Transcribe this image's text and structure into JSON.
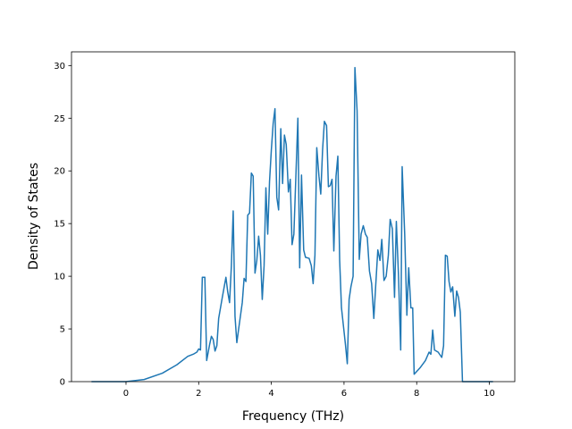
{
  "chart_data": {
    "type": "line",
    "x_label": "Frequency (THz)",
    "y_label": "Density of States",
    "x": [
      -0.95,
      0,
      0.5,
      1.0,
      1.4,
      1.7,
      1.85,
      1.95,
      2.0,
      2.05,
      2.1,
      2.17,
      2.22,
      2.3,
      2.35,
      2.4,
      2.45,
      2.5,
      2.55,
      2.65,
      2.75,
      2.8,
      2.85,
      2.9,
      2.95,
      3.0,
      3.05,
      3.1,
      3.2,
      3.25,
      3.3,
      3.35,
      3.4,
      3.45,
      3.5,
      3.55,
      3.6,
      3.65,
      3.7,
      3.75,
      3.8,
      3.85,
      3.9,
      3.95,
      4.0,
      4.05,
      4.1,
      4.15,
      4.2,
      4.26,
      4.31,
      4.36,
      4.41,
      4.47,
      4.52,
      4.57,
      4.62,
      4.68,
      4.73,
      4.78,
      4.83,
      4.89,
      4.94,
      5.04,
      5.1,
      5.15,
      5.2,
      5.25,
      5.31,
      5.36,
      5.41,
      5.46,
      5.52,
      5.57,
      5.62,
      5.67,
      5.72,
      5.78,
      5.83,
      5.88,
      5.93,
      6.04,
      6.09,
      6.14,
      6.19,
      6.25,
      6.3,
      6.36,
      6.42,
      6.47,
      6.53,
      6.59,
      6.64,
      6.7,
      6.76,
      6.82,
      6.87,
      6.93,
      6.99,
      7.04,
      7.1,
      7.16,
      7.22,
      7.27,
      7.33,
      7.39,
      7.44,
      7.5,
      7.56,
      7.6,
      7.67,
      7.73,
      7.78,
      7.84,
      7.89,
      7.93,
      8.09,
      8.24,
      8.34,
      8.39,
      8.44,
      8.49,
      8.59,
      8.69,
      8.74,
      8.79,
      8.84,
      8.89,
      8.94,
      8.99,
      9.05,
      9.1,
      9.15,
      9.2,
      9.26,
      9.8,
      10.1
    ],
    "values": [
      0,
      0,
      0.2,
      0.8,
      1.6,
      2.4,
      2.6,
      2.8,
      3.1,
      3.0,
      9.9,
      9.9,
      2.0,
      3.5,
      4.3,
      4.0,
      2.9,
      3.4,
      6.0,
      8.0,
      9.9,
      8.5,
      7.5,
      11.0,
      16.2,
      6.2,
      3.7,
      5.0,
      7.5,
      9.8,
      9.5,
      15.8,
      16.0,
      19.8,
      19.5,
      10.3,
      11.5,
      13.8,
      12.0,
      7.8,
      11.0,
      18.4,
      14.0,
      19.0,
      22.0,
      24.5,
      25.9,
      17.5,
      16.3,
      24.0,
      18.8,
      23.4,
      22.5,
      18.0,
      19.2,
      13.0,
      14.0,
      20.0,
      25.0,
      10.8,
      19.6,
      12.5,
      11.8,
      11.7,
      11.0,
      9.3,
      12.0,
      22.2,
      19.5,
      17.8,
      22.0,
      24.7,
      24.3,
      18.5,
      18.6,
      19.2,
      12.4,
      19.5,
      21.4,
      11.5,
      7.0,
      3.5,
      1.7,
      7.8,
      9.0,
      10.0,
      29.8,
      25.7,
      11.6,
      14.0,
      14.8,
      14.0,
      13.7,
      10.5,
      9.3,
      6.0,
      9.0,
      12.5,
      11.5,
      13.5,
      9.6,
      10.0,
      12.0,
      15.4,
      14.5,
      8.0,
      15.2,
      10.0,
      3.0,
      20.4,
      14.0,
      6.3,
      10.8,
      7.0,
      7.0,
      0.7,
      1.3,
      2.0,
      2.8,
      2.6,
      4.9,
      3.0,
      2.8,
      2.3,
      3.4,
      12.0,
      11.9,
      9.5,
      8.5,
      9.0,
      6.2,
      8.6,
      8.0,
      6.6,
      0,
      0,
      0
    ],
    "color": "#1f77b4",
    "xlim": [
      -1.5,
      10.7
    ],
    "xticks": [
      0,
      2,
      4,
      6,
      8,
      10
    ],
    "ylim": [
      0,
      31.3
    ],
    "yticks": [
      0,
      5,
      10,
      15,
      20,
      25,
      30
    ]
  }
}
